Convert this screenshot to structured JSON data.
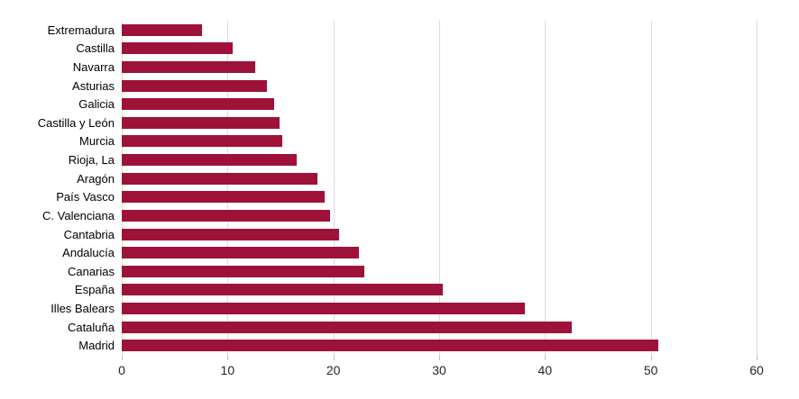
{
  "chart_data": {
    "type": "bar",
    "orientation": "horizontal",
    "title": "",
    "xlabel": "",
    "ylabel": "",
    "categories": [
      "Extremadura",
      "Castilla",
      "Navarra",
      "Asturias",
      "Galicia",
      "Castilla y León",
      "Murcia",
      "Rioja, La",
      "Aragón",
      "País Vasco",
      "C. Valenciana",
      "Cantabria",
      "Andalucía",
      "Canarias",
      "España",
      "Illes Balears",
      "Cataluña",
      "Madrid"
    ],
    "values": [
      7.6,
      10.5,
      12.6,
      13.7,
      14.4,
      14.9,
      15.2,
      16.5,
      18.5,
      19.2,
      19.7,
      20.5,
      22.4,
      22.9,
      30.3,
      38.1,
      42.5,
      50.7
    ],
    "xlim": [
      0,
      60
    ],
    "xticks": [
      0,
      10,
      20,
      30,
      40,
      50,
      60
    ],
    "grid": true,
    "legend": false,
    "colors": {
      "bar": "#9E1239",
      "gridline": "#DCDCDC",
      "tick_mark": "#BFBFBF",
      "tick_label": "#262626",
      "category_label": "#000000",
      "background": "#FFFFFF"
    }
  }
}
